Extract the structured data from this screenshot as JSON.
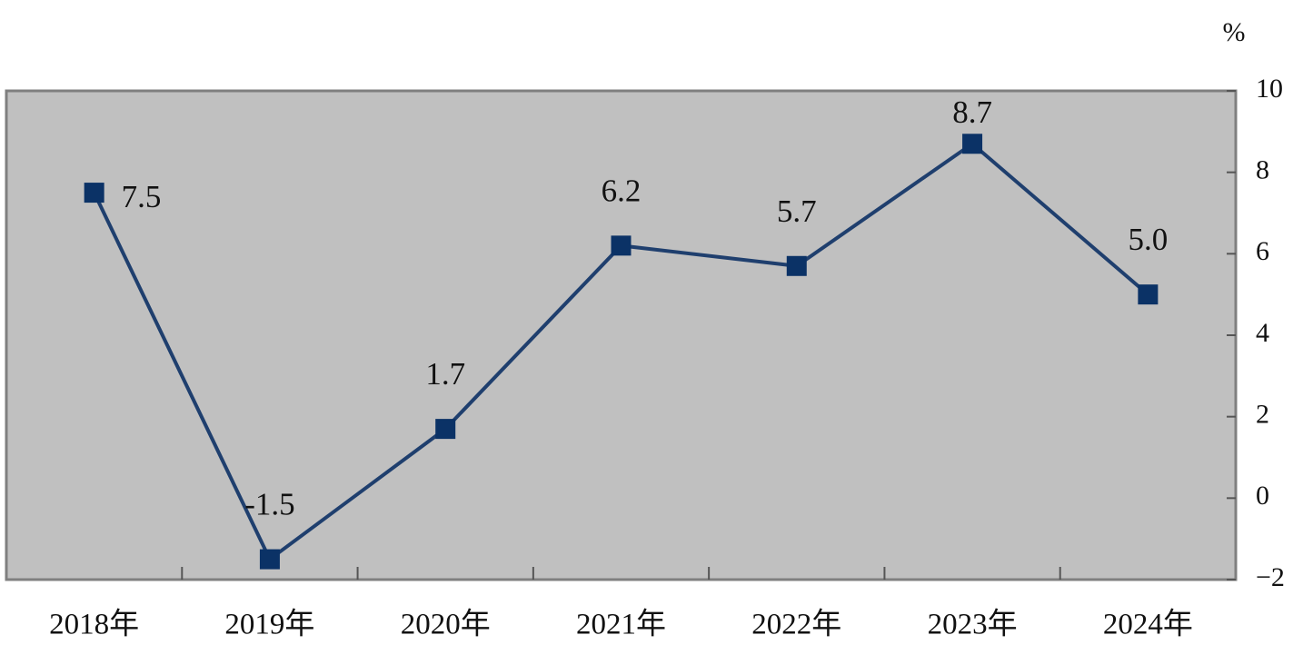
{
  "chart_data": {
    "type": "line",
    "y_unit": "%",
    "categories": [
      "2018年",
      "2019年",
      "2020年",
      "2021年",
      "2022年",
      "2023年",
      "2024年"
    ],
    "series": [
      {
        "color": "#1f3f6e",
        "marker_color": "#0b3266",
        "values": [
          7.5,
          -1.5,
          1.7,
          6.2,
          5.7,
          8.7,
          5.0
        ],
        "value_labels": [
          "7.5",
          "-1.5",
          "1.7",
          "6.2",
          "5.7",
          "8.7",
          "5.0"
        ]
      }
    ],
    "ylim": [
      -2,
      10
    ],
    "yticks": [
      {
        "value": -2,
        "label": "−2"
      },
      0,
      2,
      4,
      6,
      8,
      10
    ],
    "y_axis_side": "right",
    "plot_background": "#c0c0c0"
  }
}
